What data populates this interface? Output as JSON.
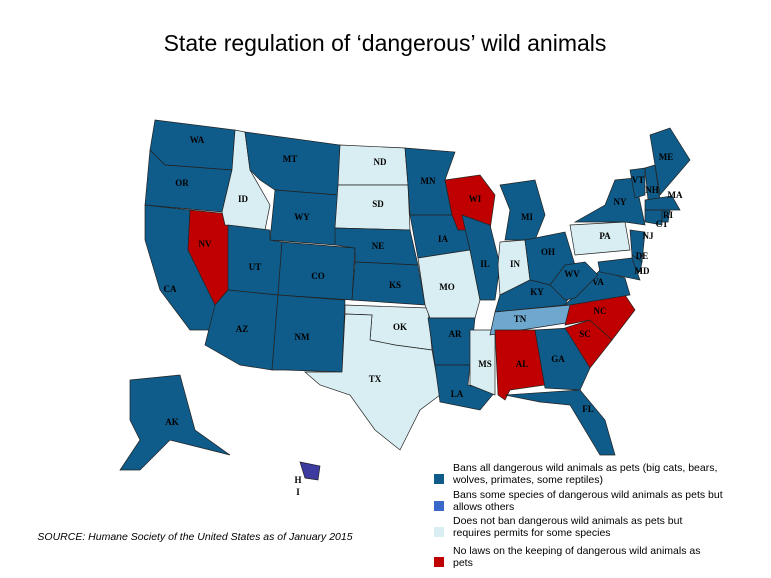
{
  "title": "State regulation of ‘dangerous’ wild animals",
  "source": "SOURCE: Humane Society of the United States as of January 2015",
  "legend": [
    {
      "label": "Bans  all dangerous wild animals as pets (big cats, bears, wolves, primates, some reptiles)",
      "color": "#0f5b89"
    },
    {
      "label": "Bans some species of dangerous wild animals as pets but allows others",
      "color": "#3a68c8"
    },
    {
      "label": "Does not ban dangerous wild animals as pets but requires permits for some species",
      "color": "#d9eef2"
    },
    {
      "label": "No laws on the keeping of dangerous wild animals as pets",
      "color": "#c00000"
    }
  ],
  "states": [
    {
      "label": "WA",
      "color": "#0f5b89"
    },
    {
      "label": "OR",
      "color": "#0f5b89"
    },
    {
      "label": "CA",
      "color": "#0f5b89"
    },
    {
      "label": "NV",
      "color": "#c00000"
    },
    {
      "label": "ID",
      "color": "#d9eef2"
    },
    {
      "label": "MT",
      "color": "#0f5b89"
    },
    {
      "label": "WY",
      "color": "#0f5b89"
    },
    {
      "label": "UT",
      "color": "#0f5b89"
    },
    {
      "label": "AZ",
      "color": "#0f5b89"
    },
    {
      "label": "CO",
      "color": "#0f5b89"
    },
    {
      "label": "NM",
      "color": "#0f5b89"
    },
    {
      "label": "ND",
      "color": "#d9eef2"
    },
    {
      "label": "SD",
      "color": "#d9eef2"
    },
    {
      "label": "NE",
      "color": "#0f5b89"
    },
    {
      "label": "KS",
      "color": "#0f5b89"
    },
    {
      "label": "OK",
      "color": "#d9eef2"
    },
    {
      "label": "TX",
      "color": "#d9eef2"
    },
    {
      "label": "MN",
      "color": "#0f5b89"
    },
    {
      "label": "IA",
      "color": "#0f5b89"
    },
    {
      "label": "MO",
      "color": "#d9eef2"
    },
    {
      "label": "AR",
      "color": "#0f5b89"
    },
    {
      "label": "LA",
      "color": "#0f5b89"
    },
    {
      "label": "WI",
      "color": "#c00000"
    },
    {
      "label": "IL",
      "color": "#0f5b89"
    },
    {
      "label": "MS",
      "color": "#d9eef2"
    },
    {
      "label": "MI",
      "color": "#0f5b89"
    },
    {
      "label": "IN",
      "color": "#d9eef2"
    },
    {
      "label": "OH",
      "color": "#0f5b89"
    },
    {
      "label": "KY",
      "color": "#0f5b89"
    },
    {
      "label": "TN",
      "color": "#6fa8cf"
    },
    {
      "label": "AL",
      "color": "#c00000"
    },
    {
      "label": "GA",
      "color": "#0f5b89"
    },
    {
      "label": "FL",
      "color": "#0f5b89"
    },
    {
      "label": "SC",
      "color": "#c00000"
    },
    {
      "label": "NC",
      "color": "#c00000"
    },
    {
      "label": "VA",
      "color": "#0f5b89"
    },
    {
      "label": "WV",
      "color": "#0f5b89"
    },
    {
      "label": "PA",
      "color": "#d9eef2"
    },
    {
      "label": "NY",
      "color": "#0f5b89"
    },
    {
      "label": "VT",
      "color": "#0f5b89"
    },
    {
      "label": "NH",
      "color": "#0f5b89"
    },
    {
      "label": "ME",
      "color": "#0f5b89"
    },
    {
      "label": "MA",
      "color": "#0f5b89"
    },
    {
      "label": "CT",
      "color": "#0f5b89"
    },
    {
      "label": "RI",
      "color": "#0f5b89"
    },
    {
      "label": "NJ",
      "color": "#0f5b89"
    },
    {
      "label": "DE",
      "color": "#0f5b89"
    },
    {
      "label": "MD",
      "color": "#0f5b89"
    },
    {
      "label": "AK",
      "color": "#0f5b89"
    },
    {
      "label": [
        "H",
        "I"
      ],
      "color": "#3d3aa0"
    }
  ]
}
